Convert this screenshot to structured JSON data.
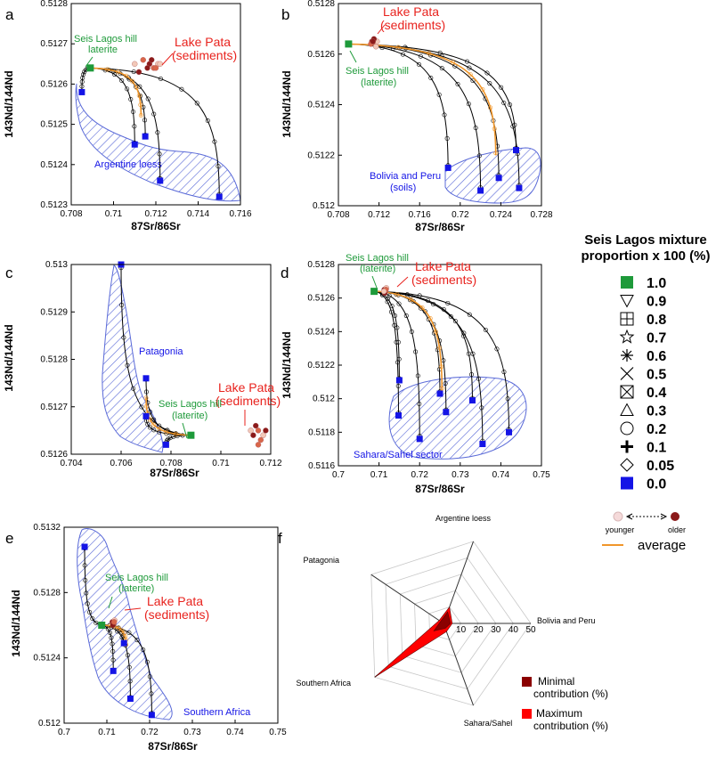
{
  "chart_data": [
    {
      "panel": "a",
      "type": "scatter",
      "xlabel": "87Sr/86Sr",
      "ylabel": "143Nd/144Nd",
      "xlim": [
        0.708,
        0.716
      ],
      "ylim": [
        0.5123,
        0.5128
      ],
      "xticks": [
        0.708,
        0.71,
        0.712,
        0.714,
        0.716
      ],
      "xtick_labels": [
        "0.708",
        "0.71",
        "0.712",
        "0.714",
        "0.716"
      ],
      "yticks": [
        0.5123,
        0.5124,
        0.5125,
        0.5126,
        0.5127,
        0.5128
      ],
      "ytick_labels": [
        "0.5123",
        "0.5124",
        "0.5125",
        "0.5126",
        "0.5127",
        "0.5128"
      ],
      "seis_lagos": [
        0.7089,
        0.51264
      ],
      "endmembers": [
        [
          0.7085,
          0.51258
        ],
        [
          0.711,
          0.51245
        ],
        [
          0.7115,
          0.51247
        ],
        [
          0.7122,
          0.51236
        ],
        [
          0.715,
          0.51232
        ]
      ],
      "average_endmember": [
        0.7113,
        0.51252
      ],
      "lake_pata": [
        [
          0.7117,
          0.51265
        ],
        [
          0.7119,
          0.51264
        ],
        [
          0.7121,
          0.51265
        ],
        [
          0.7118,
          0.51266
        ],
        [
          0.712,
          0.51264
        ],
        [
          0.7122,
          0.51265
        ],
        [
          0.7116,
          0.51264
        ],
        [
          0.7114,
          0.51266
        ],
        [
          0.711,
          0.51265
        ],
        [
          0.7112,
          0.51263
        ]
      ],
      "annotations": [
        "Seis Lagos hill",
        "laterite",
        "Lake Pata",
        "(sediments)"
      ],
      "region": "Argentine loess"
    },
    {
      "panel": "b",
      "type": "scatter",
      "xlabel": "87Sr/86Sr",
      "ylabel": "143Nd/144Nd",
      "xlim": [
        0.708,
        0.728
      ],
      "ylim": [
        0.512,
        0.5128
      ],
      "xticks": [
        0.708,
        0.712,
        0.716,
        0.72,
        0.724,
        0.728
      ],
      "xtick_labels": [
        "0.708",
        "0.712",
        "0.716",
        "0.72",
        "0.724",
        "0.728"
      ],
      "yticks": [
        0.512,
        0.5122,
        0.5124,
        0.5126,
        0.5128
      ],
      "ytick_labels": [
        "0.512",
        "0.5122",
        "0.5124",
        "0.5126",
        "0.5128"
      ],
      "seis_lagos": [
        0.709,
        0.51264
      ],
      "endmembers": [
        [
          0.7188,
          0.51215
        ],
        [
          0.722,
          0.51206
        ],
        [
          0.7238,
          0.51211
        ],
        [
          0.7255,
          0.51222
        ],
        [
          0.7258,
          0.51207
        ]
      ],
      "average_endmember": [
        0.7235,
        0.5122
      ],
      "lake_pata": [
        [
          0.7113,
          0.51265
        ],
        [
          0.7116,
          0.51264
        ],
        [
          0.7118,
          0.51265
        ],
        [
          0.7115,
          0.51266
        ],
        [
          0.7112,
          0.51264
        ],
        [
          0.7117,
          0.51263
        ],
        [
          0.7114,
          0.51265
        ]
      ],
      "annotations": [
        "Lake Pata",
        "(sediments)",
        "Seis Lagos hill",
        "(laterite)"
      ],
      "region": [
        "Bolivia and Peru",
        "(soils)"
      ]
    },
    {
      "panel": "c",
      "type": "scatter",
      "xlabel": "87Sr/86Sr",
      "ylabel": "143Nd/144Nd",
      "xlim": [
        0.704,
        0.712
      ],
      "ylim": [
        0.5126,
        0.513
      ],
      "xticks": [
        0.704,
        0.706,
        0.708,
        0.71,
        0.712
      ],
      "xtick_labels": [
        "0.704",
        "0.706",
        "0.708",
        "0.71",
        "0.712"
      ],
      "yticks": [
        0.5126,
        0.5127,
        0.5128,
        0.5129,
        0.513
      ],
      "ytick_labels": [
        "0.5126",
        "0.5127",
        "0.5128",
        "0.5129",
        "0.513"
      ],
      "seis_lagos": [
        0.7088,
        0.51264
      ],
      "endmembers": [
        [
          0.706,
          0.513
        ],
        [
          0.707,
          0.51276
        ],
        [
          0.707,
          0.51268
        ],
        [
          0.7078,
          0.51262
        ]
      ],
      "average_endmember": [
        0.707,
        0.51272
      ],
      "lake_pata": [
        [
          0.7113,
          0.51264
        ],
        [
          0.7115,
          0.51265
        ],
        [
          0.7117,
          0.51264
        ],
        [
          0.7114,
          0.51266
        ],
        [
          0.7116,
          0.51263
        ],
        [
          0.7112,
          0.51265
        ],
        [
          0.7118,
          0.51265
        ],
        [
          0.7115,
          0.51262
        ]
      ],
      "annotations": [
        "Lake Pata",
        "(sediments)",
        "Seis Lagos hill",
        "(laterite)"
      ],
      "region": "Patagonia"
    },
    {
      "panel": "d",
      "type": "scatter",
      "xlabel": "87Sr/86Sr",
      "ylabel": "143Nd/144Nd",
      "xlim": [
        0.7,
        0.75
      ],
      "ylim": [
        0.5116,
        0.5128
      ],
      "xticks": [
        0.7,
        0.71,
        0.72,
        0.73,
        0.74,
        0.75
      ],
      "xtick_labels": [
        "0.7",
        "0.71",
        "0.72",
        "0.73",
        "0.74",
        "0.75"
      ],
      "yticks": [
        0.5116,
        0.5118,
        0.512,
        0.5122,
        0.5124,
        0.5126,
        0.5128
      ],
      "ytick_labels": [
        "0.5116",
        "0.5118",
        "0.512",
        "0.5122",
        "0.5124",
        "0.5126",
        "0.5128"
      ],
      "seis_lagos": [
        0.7088,
        0.51264
      ],
      "endmembers": [
        [
          0.7148,
          0.5119
        ],
        [
          0.715,
          0.51211
        ],
        [
          0.72,
          0.51176
        ],
        [
          0.725,
          0.51203
        ],
        [
          0.7265,
          0.51192
        ],
        [
          0.733,
          0.51199
        ],
        [
          0.7355,
          0.51173
        ],
        [
          0.742,
          0.5118
        ]
      ],
      "average_endmember": [
        0.7255,
        0.51205
      ],
      "lake_pata": [
        [
          0.7113,
          0.51265
        ],
        [
          0.7116,
          0.51264
        ],
        [
          0.7118,
          0.51266
        ],
        [
          0.7114,
          0.51263
        ],
        [
          0.7117,
          0.51265
        ],
        [
          0.7112,
          0.51264
        ]
      ],
      "annotations": [
        "Seis Lagos hill",
        "(laterite)",
        "Lake Pata",
        "(sediments)"
      ],
      "region": "Sahara/Sahel sector"
    },
    {
      "panel": "e",
      "type": "scatter",
      "xlabel": "87Sr/86Sr",
      "ylabel": "143Nd/144Nd",
      "xlim": [
        0.7,
        0.75
      ],
      "ylim": [
        0.512,
        0.5132
      ],
      "xticks": [
        0.7,
        0.71,
        0.72,
        0.73,
        0.74,
        0.75
      ],
      "xtick_labels": [
        "0.7",
        "0.71",
        "0.72",
        "0.73",
        "0.74",
        "0.75"
      ],
      "yticks": [
        0.512,
        0.5124,
        0.5128,
        0.5132
      ],
      "ytick_labels": [
        "0.512",
        "0.5124",
        "0.5128",
        "0.5132"
      ],
      "seis_lagos": [
        0.7088,
        0.5126
      ],
      "endmembers": [
        [
          0.7048,
          0.51308
        ],
        [
          0.7115,
          0.51232
        ],
        [
          0.714,
          0.51249
        ],
        [
          0.7155,
          0.51215
        ],
        [
          0.7205,
          0.51205
        ]
      ],
      "average_endmember": [
        0.7145,
        0.51248
      ],
      "lake_pata": [
        [
          0.7113,
          0.51262
        ],
        [
          0.7116,
          0.51261
        ],
        [
          0.7118,
          0.51263
        ],
        [
          0.7114,
          0.5126
        ],
        [
          0.7117,
          0.51262
        ]
      ],
      "annotations": [
        "Seis Lagos hill",
        "(laterite)",
        "Lake Pata",
        "(sediments)"
      ],
      "region": "Southern Africa"
    },
    {
      "panel": "f",
      "type": "radar",
      "axes": [
        "Argentine loess",
        "Bolivia and Peru",
        "Sahara/Sahel",
        "Southern Africa",
        "Patagonia"
      ],
      "rticks": [
        10,
        20,
        30,
        40,
        50
      ],
      "rtick_labels": [
        "10",
        "20",
        "30",
        "40",
        "50"
      ],
      "rmax": 50,
      "series": [
        {
          "name": "Minimal contribution (%)",
          "values": [
            7,
            4,
            3,
            7,
            2
          ],
          "color": "#8b0000"
        },
        {
          "name": "Maximum contribution (%)",
          "values": [
            10,
            5,
            5,
            50,
            3
          ],
          "color": "#ff0000"
        }
      ]
    }
  ],
  "legend": {
    "title_line1": "Seis Lagos mixture",
    "title_line2": "proportion x 100 (%)",
    "items": [
      {
        "symbol": "green-square",
        "label": "1.0"
      },
      {
        "symbol": "triangle-down",
        "label": "0.9"
      },
      {
        "symbol": "square-plus",
        "label": "0.8"
      },
      {
        "symbol": "star",
        "label": "0.7"
      },
      {
        "symbol": "asterisk",
        "label": "0.6"
      },
      {
        "symbol": "cross-x",
        "label": "0.5"
      },
      {
        "symbol": "square-x",
        "label": "0.4"
      },
      {
        "symbol": "triangle-up",
        "label": "0.3"
      },
      {
        "symbol": "circle",
        "label": "0.2"
      },
      {
        "symbol": "plus",
        "label": "0.1"
      },
      {
        "symbol": "diamond",
        "label": "0.05"
      },
      {
        "symbol": "blue-square",
        "label": "0.0"
      }
    ],
    "younger": "younger",
    "older": "older",
    "average": "average"
  },
  "colors": {
    "green": "#1e9a3a",
    "blue": "#1414e6",
    "red": "#e8231e",
    "orange": "#f0962a",
    "hatch": "#5a6ad8",
    "min_fill": "#8b0000",
    "max_fill": "#ff0000"
  }
}
